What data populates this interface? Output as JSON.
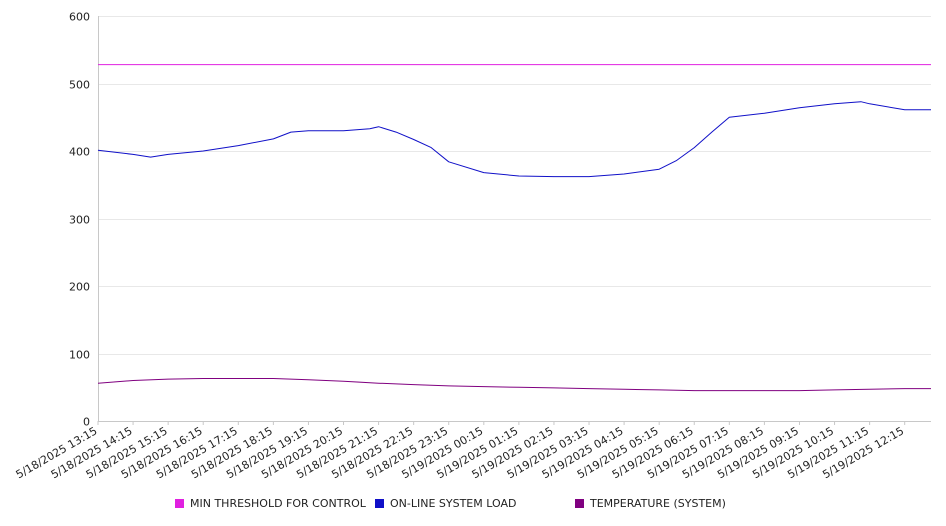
{
  "chart_data": {
    "type": "line",
    "y_ticks": [
      "0",
      "100",
      "200",
      "300",
      "400",
      "500",
      "600"
    ],
    "ylim": [
      0,
      600
    ],
    "x_tick_labels": [
      "5/18/2025 13:15",
      "5/18/2025 14:15",
      "5/18/2025 15:15",
      "5/18/2025 16:15",
      "5/18/2025 17:15",
      "5/18/2025 18:15",
      "5/18/2025 19:15",
      "5/18/2025 20:15",
      "5/18/2025 21:15",
      "5/18/2025 22:15",
      "5/18/2025 23:15",
      "5/19/2025 00:15",
      "5/19/2025 01:15",
      "5/19/2025 02:15",
      "5/19/2025 03:15",
      "5/19/2025 04:15",
      "5/19/2025 05:15",
      "5/19/2025 06:15",
      "5/19/2025 07:15",
      "5/19/2025 08:15",
      "5/19/2025 09:15",
      "5/19/2025 10:15",
      "5/19/2025 11:15",
      "5/19/2025 12:15"
    ],
    "x_end": "5/19/2025 13:00",
    "grid": "horizontal",
    "legend_position": "bottom",
    "series": [
      {
        "name": "MIN THRESHOLD FOR CONTROL",
        "color": "#e020e0",
        "x": [
          "5/18/2025 13:15",
          "5/19/2025 13:00"
        ],
        "values": [
          528,
          528
        ]
      },
      {
        "name": "ON-LINE SYSTEM LOAD",
        "color": "#1010c8",
        "x": [
          "5/18/2025 13:15",
          "5/18/2025 14:15",
          "5/18/2025 14:45",
          "5/18/2025 15:15",
          "5/18/2025 16:15",
          "5/18/2025 17:15",
          "5/18/2025 18:15",
          "5/18/2025 18:45",
          "5/18/2025 19:15",
          "5/18/2025 20:15",
          "5/18/2025 21:00",
          "5/18/2025 21:15",
          "5/18/2025 21:45",
          "5/18/2025 22:15",
          "5/18/2025 22:45",
          "5/18/2025 23:15",
          "5/19/2025 00:15",
          "5/19/2025 01:15",
          "5/19/2025 02:15",
          "5/19/2025 03:15",
          "5/19/2025 04:15",
          "5/19/2025 05:15",
          "5/19/2025 05:45",
          "5/19/2025 06:15",
          "5/19/2025 06:45",
          "5/19/2025 07:15",
          "5/19/2025 08:15",
          "5/19/2025 09:15",
          "5/19/2025 10:15",
          "5/19/2025 11:00",
          "5/19/2025 11:15",
          "5/19/2025 12:15",
          "5/19/2025 13:00"
        ],
        "values": [
          401,
          395,
          391,
          395,
          400,
          408,
          418,
          428,
          430,
          430,
          433,
          436,
          428,
          417,
          405,
          384,
          368,
          363,
          362,
          362,
          366,
          373,
          386,
          405,
          428,
          450,
          456,
          464,
          470,
          473,
          470,
          461,
          461
        ]
      },
      {
        "name": "TEMPERATURE (SYSTEM)",
        "color": "#800080",
        "x": [
          "5/18/2025 13:15",
          "5/18/2025 14:15",
          "5/18/2025 15:15",
          "5/18/2025 16:15",
          "5/18/2025 17:15",
          "5/18/2025 18:15",
          "5/18/2025 19:15",
          "5/18/2025 20:15",
          "5/18/2025 21:15",
          "5/18/2025 22:15",
          "5/18/2025 23:15",
          "5/19/2025 00:15",
          "5/19/2025 01:15",
          "5/19/2025 02:15",
          "5/19/2025 03:15",
          "5/19/2025 04:15",
          "5/19/2025 05:15",
          "5/19/2025 06:15",
          "5/19/2025 07:15",
          "5/19/2025 08:15",
          "5/19/2025 09:15",
          "5/19/2025 10:15",
          "5/19/2025 11:15",
          "5/19/2025 12:15",
          "5/19/2025 13:00"
        ],
        "values": [
          56,
          60,
          62,
          63,
          63,
          63,
          61,
          59,
          56,
          54,
          52,
          51,
          50,
          49,
          48,
          47,
          46,
          45,
          45,
          45,
          45,
          46,
          47,
          48,
          48
        ]
      }
    ]
  }
}
